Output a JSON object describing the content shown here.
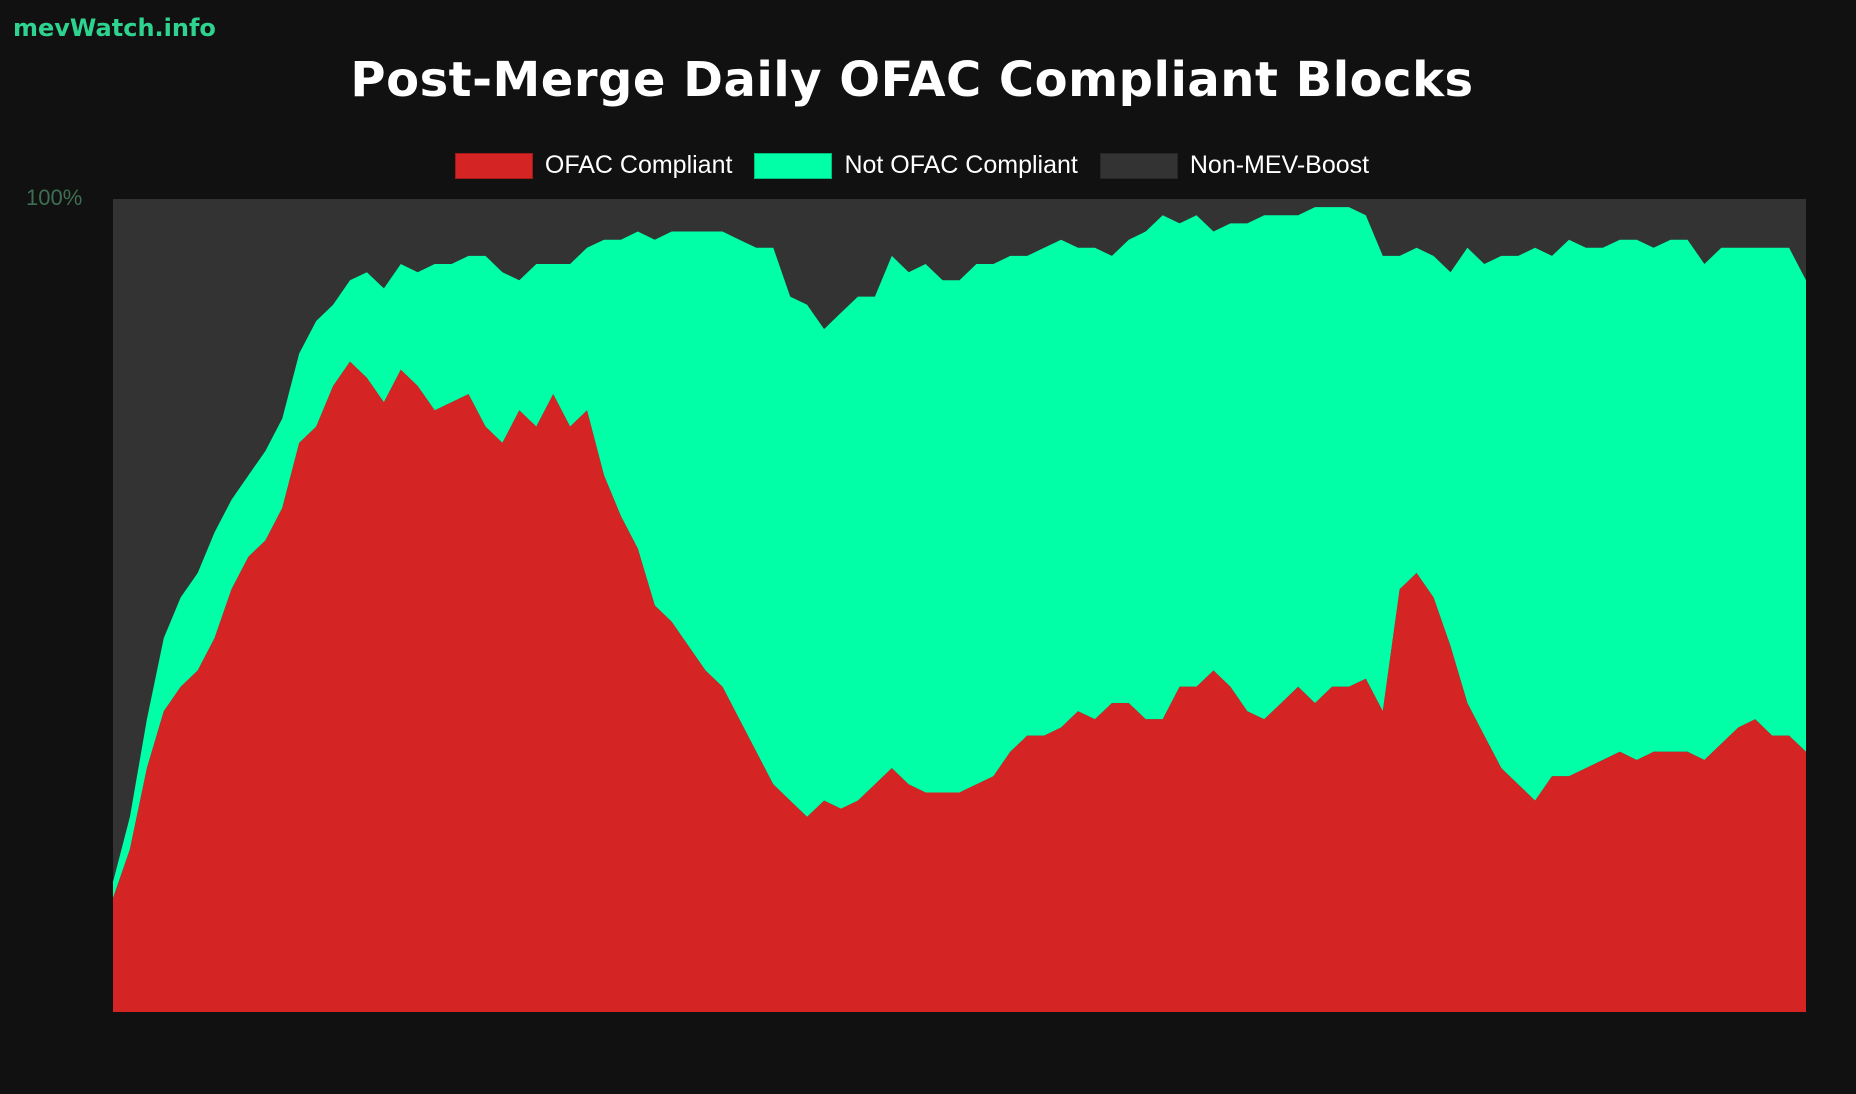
{
  "brand": "mevWatch.info",
  "chart_data": {
    "type": "area",
    "stacked": true,
    "normalized": true,
    "title": "Post-Merge Daily OFAC Compliant Blocks",
    "ylabel": "",
    "xlabel": "",
    "ylim": [
      0,
      100
    ],
    "y_ticks": [
      "100%"
    ],
    "legend": "top-center",
    "grid": false,
    "series": [
      {
        "name": "OFAC Compliant",
        "color": "#d42424"
      },
      {
        "name": "Not OFAC Compliant",
        "color": "#00ffa6"
      },
      {
        "name": "Non-MEV-Boost",
        "color": "#333333"
      }
    ],
    "x": [
      0,
      10,
      20,
      30,
      40,
      50,
      60,
      70,
      80,
      90,
      100,
      110,
      120,
      130,
      140,
      150,
      160,
      170,
      180,
      190,
      200,
      210,
      220,
      230,
      240,
      250,
      260,
      270,
      280,
      290,
      300,
      310,
      320,
      330,
      340,
      350,
      360,
      370,
      380,
      390,
      400,
      410,
      420,
      430,
      440,
      450,
      460,
      470,
      480,
      490,
      500,
      510,
      520,
      530,
      540,
      550,
      560,
      570,
      580,
      590,
      600,
      610,
      620,
      630,
      640,
      650,
      660,
      670,
      680,
      690,
      700,
      710,
      720,
      730,
      740,
      750,
      760,
      770,
      780,
      790,
      800,
      810,
      820,
      830,
      840,
      850,
      860,
      870,
      880,
      890,
      900,
      910,
      920,
      930,
      940,
      950,
      960,
      970,
      980,
      990,
      1000
    ],
    "ofac_pct": [
      14,
      20,
      30,
      37,
      40,
      42,
      46,
      52,
      56,
      58,
      62,
      70,
      72,
      77,
      80,
      78,
      75,
      79,
      77,
      74,
      75,
      76,
      72,
      70,
      74,
      72,
      76,
      72,
      74,
      66,
      61,
      57,
      50,
      48,
      45,
      42,
      40,
      36,
      32,
      28,
      26,
      24,
      26,
      25,
      26,
      28,
      30,
      28,
      27,
      27,
      27,
      28,
      29,
      32,
      34,
      34,
      35,
      37,
      36,
      38,
      38,
      36,
      36,
      40,
      40,
      42,
      40,
      37,
      36,
      38,
      40,
      38,
      40,
      40,
      41,
      37,
      52,
      54,
      51,
      45,
      38,
      34,
      30,
      28,
      26,
      29,
      29,
      30,
      31,
      32,
      31,
      32,
      32,
      32,
      31,
      33,
      35,
      36,
      34,
      34,
      32
    ],
    "not_ofac_pct": [
      2,
      4,
      6,
      9,
      11,
      12,
      13,
      11,
      10,
      11,
      11,
      11,
      13,
      10,
      10,
      13,
      14,
      13,
      14,
      18,
      17,
      17,
      21,
      21,
      16,
      20,
      16,
      20,
      20,
      29,
      34,
      39,
      45,
      48,
      51,
      54,
      56,
      59,
      62,
      66,
      62,
      63,
      58,
      61,
      62,
      60,
      63,
      63,
      65,
      63,
      63,
      64,
      63,
      61,
      59,
      60,
      60,
      57,
      58,
      55,
      57,
      60,
      62,
      57,
      58,
      54,
      57,
      60,
      62,
      60,
      58,
      61,
      59,
      59,
      57,
      56,
      41,
      40,
      42,
      46,
      56,
      58,
      63,
      65,
      68,
      64,
      66,
      64,
      63,
      63,
      64,
      62,
      63,
      63,
      61,
      61,
      59,
      58,
      60,
      60,
      58
    ]
  }
}
